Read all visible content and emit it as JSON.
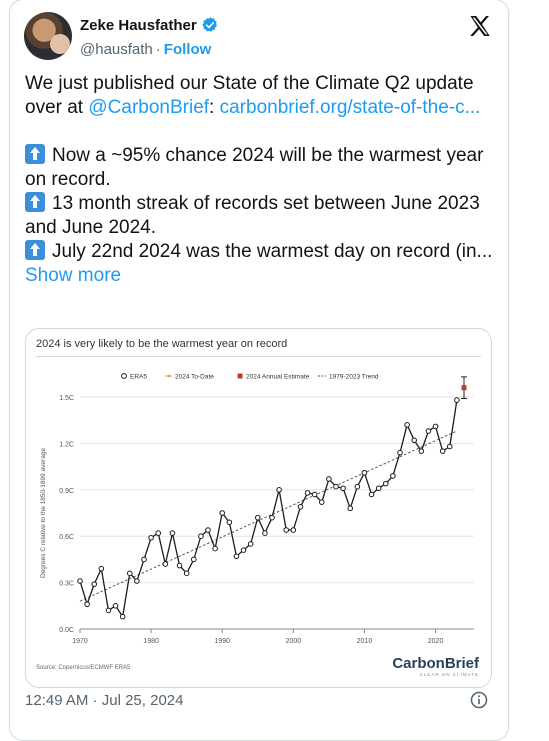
{
  "author": {
    "name": "Zeke Hausfather",
    "handle": "@hausfath",
    "separator": "·",
    "follow_label": "Follow"
  },
  "tweet": {
    "line1_prefix": "We just published our State of the Climate Q2 update over at ",
    "mention": "@CarbonBrief",
    "colon": ": ",
    "link": "carbonbrief.org/state-of-the-c...",
    "bullet1": "Now a ~95% chance 2024 will be the warmest year on record.",
    "bullet2": "13 month streak of records set between June 2023 and June 2024.",
    "bullet3": "July 22nd 2024 was the warmest day on record (in...",
    "show_more": "Show more"
  },
  "chart_data": {
    "type": "line",
    "title": "2024 is very likely to be the warmest year on record",
    "ylabel": "Degrees C relative to the 1850-1899 average",
    "xlabel": "",
    "ylim": [
      0,
      1.5
    ],
    "xlim": [
      1970,
      2024
    ],
    "xticks": [
      "1970",
      "1980",
      "1990",
      "2000",
      "2010",
      "2020"
    ],
    "yticks": [
      "0.0C",
      "0.3C",
      "0.6C",
      "0.9C",
      "1.2C",
      "1.5C"
    ],
    "legend": [
      "ERA5",
      "2024 To-Date",
      "2024 Annual Estimate",
      "1979-2023 Trend"
    ],
    "legend_position": "top",
    "grid": true,
    "source": "Source: Copernicus/ECMWF ERA5",
    "brand": "CarbonBrief",
    "brand_tagline": "CLEAR ON CLIMATE",
    "series": [
      {
        "name": "ERA5",
        "x": [
          1970,
          1971,
          1972,
          1973,
          1974,
          1975,
          1976,
          1977,
          1978,
          1979,
          1980,
          1981,
          1982,
          1983,
          1984,
          1985,
          1986,
          1987,
          1988,
          1989,
          1990,
          1991,
          1992,
          1993,
          1994,
          1995,
          1996,
          1997,
          1998,
          1999,
          2000,
          2001,
          2002,
          2003,
          2004,
          2005,
          2006,
          2007,
          2008,
          2009,
          2010,
          2011,
          2012,
          2013,
          2014,
          2015,
          2016,
          2017,
          2018,
          2019,
          2020,
          2021,
          2022,
          2023
        ],
        "values": [
          0.31,
          0.16,
          0.29,
          0.39,
          0.12,
          0.15,
          0.08,
          0.36,
          0.31,
          0.45,
          0.59,
          0.62,
          0.42,
          0.62,
          0.41,
          0.36,
          0.45,
          0.6,
          0.64,
          0.52,
          0.75,
          0.69,
          0.47,
          0.51,
          0.55,
          0.72,
          0.62,
          0.72,
          0.9,
          0.64,
          0.64,
          0.79,
          0.88,
          0.87,
          0.82,
          0.97,
          0.92,
          0.91,
          0.78,
          0.92,
          1.01,
          0.87,
          0.91,
          0.94,
          0.99,
          1.14,
          1.32,
          1.22,
          1.15,
          1.28,
          1.31,
          1.15,
          1.18,
          1.48
        ],
        "color": "#1c1c1c"
      },
      {
        "name": "2024 Annual Estimate",
        "x": [
          2024
        ],
        "values": [
          1.56
        ],
        "range": [
          1.49,
          1.63
        ],
        "color": "#c0392b"
      },
      {
        "name": "1979-2023 Trend",
        "x": [
          1970,
          2023
        ],
        "values": [
          0.18,
          1.28
        ],
        "color": "#555555"
      }
    ]
  },
  "footer": {
    "time": "12:49 AM",
    "separator": "·",
    "date": "Jul 25, 2024"
  },
  "colors": {
    "accent": "#1d9bf0",
    "text": "#0f1419",
    "muted": "#536471",
    "estimate": "#c0392b",
    "to_date": "#e1a140"
  },
  "icons": [
    "verified-badge-icon",
    "x-logo-icon",
    "arrow-up-icon",
    "info-icon"
  ]
}
